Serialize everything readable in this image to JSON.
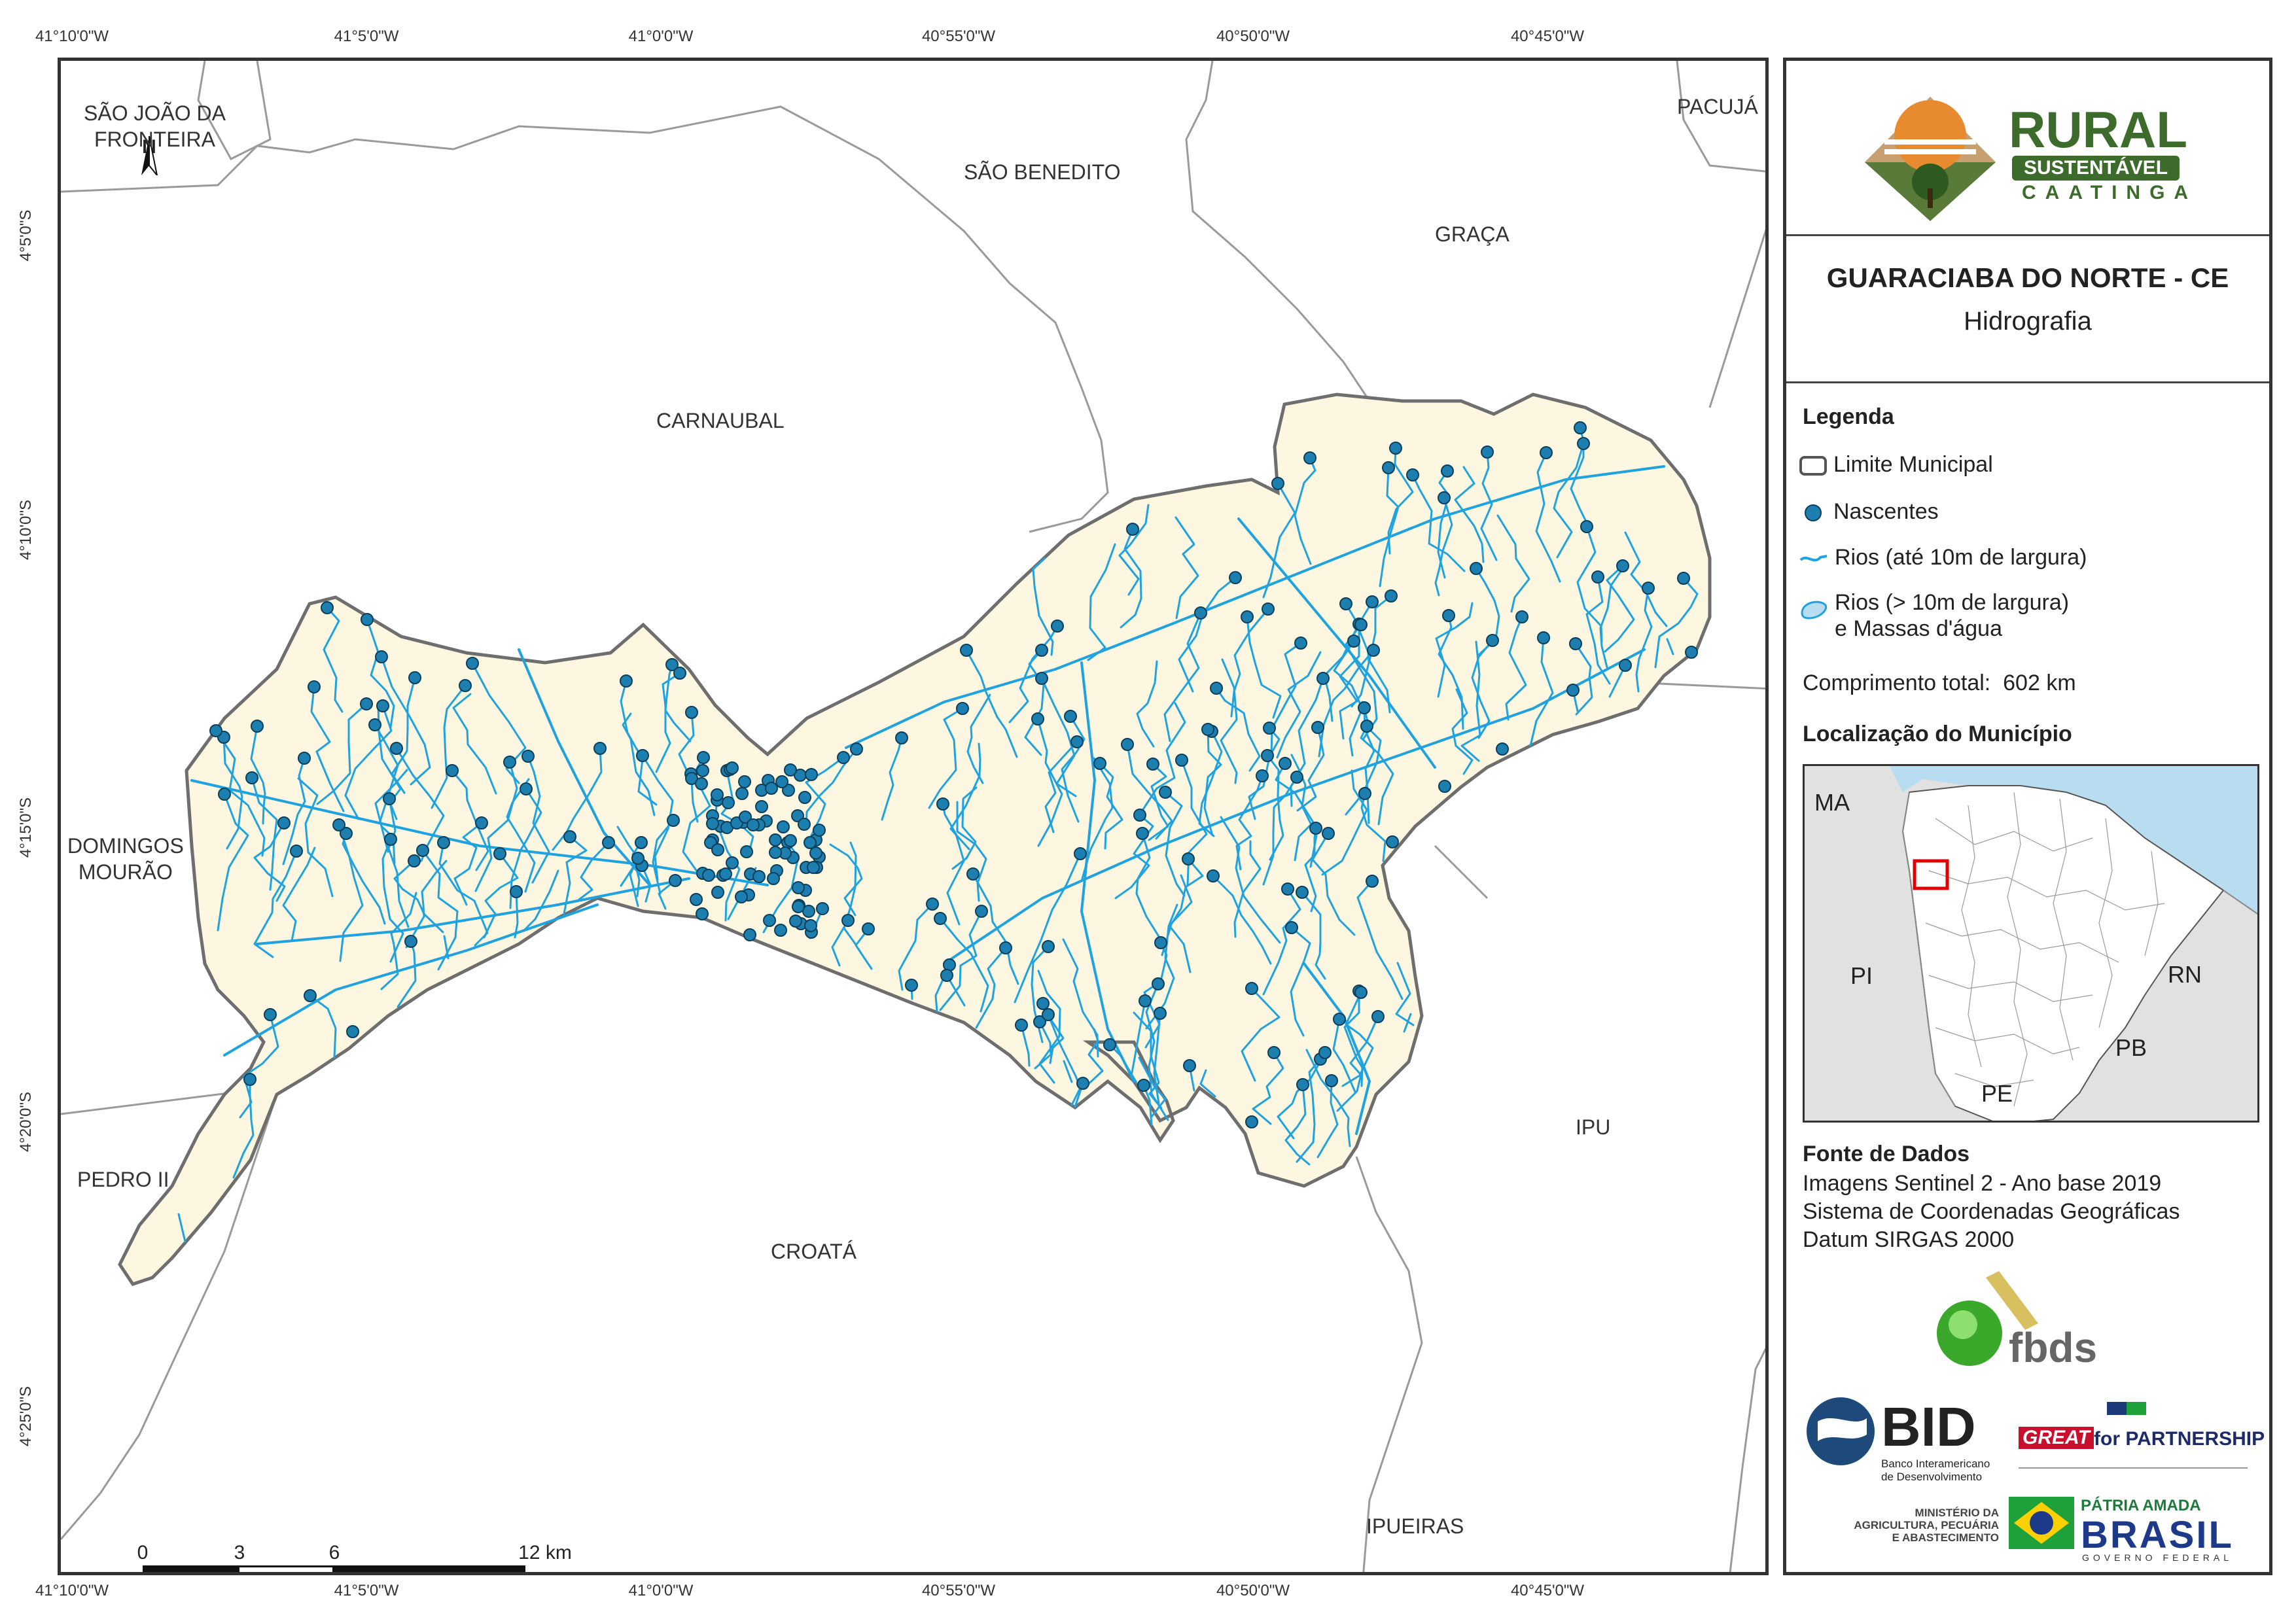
{
  "coords": {
    "top": [
      "41°10'0\"W",
      "41°5'0\"W",
      "41°0'0\"W",
      "40°55'0\"W",
      "40°50'0\"W",
      "40°45'0\"W"
    ],
    "bottom": [
      "41°10'0\"W",
      "41°5'0\"W",
      "41°0'0\"W",
      "40°55'0\"W",
      "40°50'0\"W",
      "40°45'0\"W"
    ],
    "left": [
      "4°5'0\"S",
      "4°10'0\"S",
      "4°15'0\"S",
      "4°20'0\"S",
      "4°25'0\"S"
    ]
  },
  "towns": {
    "sao_joao": "SÃO JOÃO DA\nFRONTEIRA",
    "sao_benedito": "SÃO BENEDITO",
    "pacuja": "PACUJÁ",
    "graca": "GRAÇA",
    "carnaubal": "CARNAUBAL",
    "domingos": "DOMINGOS\nMOURÃO",
    "pedro": "PEDRO II",
    "croata": "CROATÁ",
    "ipu": "IPU",
    "ipueiras": "IPUEIRAS"
  },
  "north_arrow": "N",
  "scale": {
    "labels": [
      "0",
      "3",
      "6",
      "12 km"
    ]
  },
  "logos": {
    "rural": "RURAL",
    "sustentavel": "SUSTENTÁVEL",
    "caatinga": "CAATINGA",
    "fbds": "fbds",
    "bid": "BID",
    "bid_sub": "Banco Interamericano\nde Desenvolvimento",
    "great": "GREAT",
    "for_partnership": "for PARTNERSHIP",
    "ministerio": "MINISTÉRIO DA\nAGRICULTURA, PECUÁRIA\nE ABASTECIMENTO",
    "patria": "PÁTRIA AMADA",
    "brasil": "BRASIL",
    "governo": "GOVERNO FEDERAL"
  },
  "panel": {
    "title": "GUARACIABA DO NORTE - CE",
    "subtitle": "Hidrografia",
    "legend_title": "Legenda",
    "legend": {
      "limite": "Limite Municipal",
      "nascentes": "Nascentes",
      "rios_small": "Rios (até 10m de largura)",
      "rios_large_1": "Rios (> 10m de largura)",
      "rios_large_2": "e Massas d'água"
    },
    "total_label": "Comprimento total:",
    "total_value": "602 km",
    "location_title": "Localização do Município",
    "inset_states": {
      "ma": "MA",
      "pi": "PI",
      "rn": "RN",
      "pb": "PB",
      "pe": "PE"
    },
    "source_title": "Fonte de Dados",
    "source_lines": [
      "Imagens Sentinel 2 - Ano base 2019",
      "Sistema de Coordenadas Geográficas",
      "Datum SIRGAS 2000"
    ]
  },
  "colors": {
    "municipality_fill": "#fdf6e0",
    "municipality_stroke": "#6e6e6e",
    "river": "#1fa3e0",
    "spring": "#1d7fb0",
    "water_body": "#b8dcf0",
    "ocean": "#b8dcf0",
    "inset_highlight": "#e00000"
  }
}
